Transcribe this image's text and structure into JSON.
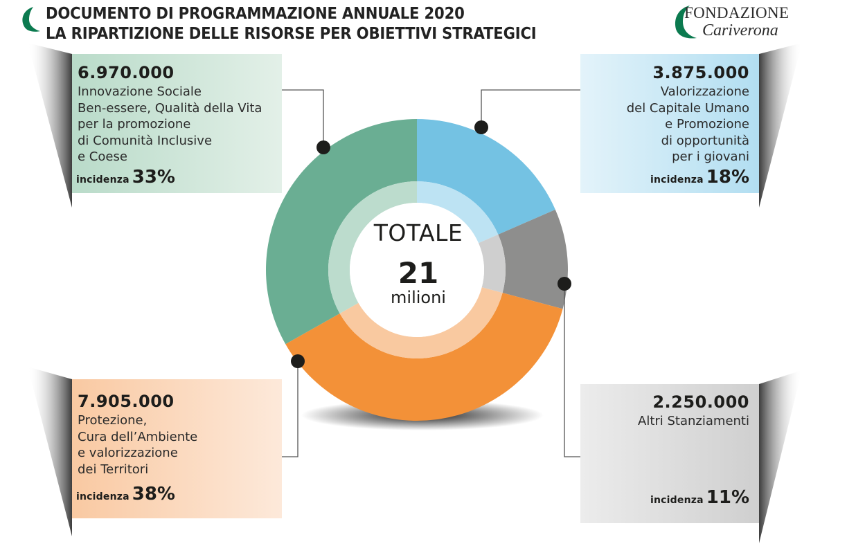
{
  "header": {
    "title_line1": "DOCUMENTO DI PROGRAMMAZIONE ANNUALE 2020",
    "title_line2": "LA RIPARTIZIONE DELLE RISORSE PER OBIETTIVI STRATEGICI",
    "logo_line1": "FONDAZIONE",
    "logo_line2": "Cariverona",
    "brand_color": "#0b7a4f"
  },
  "center": {
    "label": "TOTALE",
    "value": "21",
    "unit": "milioni"
  },
  "chart_data": {
    "type": "pie",
    "style": "donut",
    "total": 21000000,
    "series": [
      {
        "label": "Valorizzazione\ndel Capitale Umano\ne Promozione\ndi opportunità\nper i giovani",
        "value_text": "3.875.000",
        "value": 3875000,
        "incidence": "18%",
        "percent": 18,
        "color": "#74c2e3",
        "inner_color": "#bde3f3"
      },
      {
        "label": "Altri Stanziamenti",
        "value_text": "2.250.000",
        "value": 2250000,
        "incidence": "11%",
        "percent": 11,
        "color": "#8e8e8d",
        "inner_color": "#cfcfcf"
      },
      {
        "label": "Protezione,\nCura dell’Ambiente\ne valorizzazione\ndei Territori",
        "value_text": "7.905.000",
        "value": 7905000,
        "incidence": "38%",
        "percent": 38,
        "color": "#f39138",
        "inner_color": "#f9c9a0"
      },
      {
        "label": "Innovazione Sociale\nBen-essere, Qualità della Vita\nper la promozione\ndi Comunità Inclusive\ne Coese",
        "value_text": "6.970.000",
        "value": 6970000,
        "incidence": "33%",
        "percent": 33,
        "color": "#6aae93",
        "inner_color": "#bcdccd"
      }
    ],
    "incidence_label": "incidenza"
  }
}
